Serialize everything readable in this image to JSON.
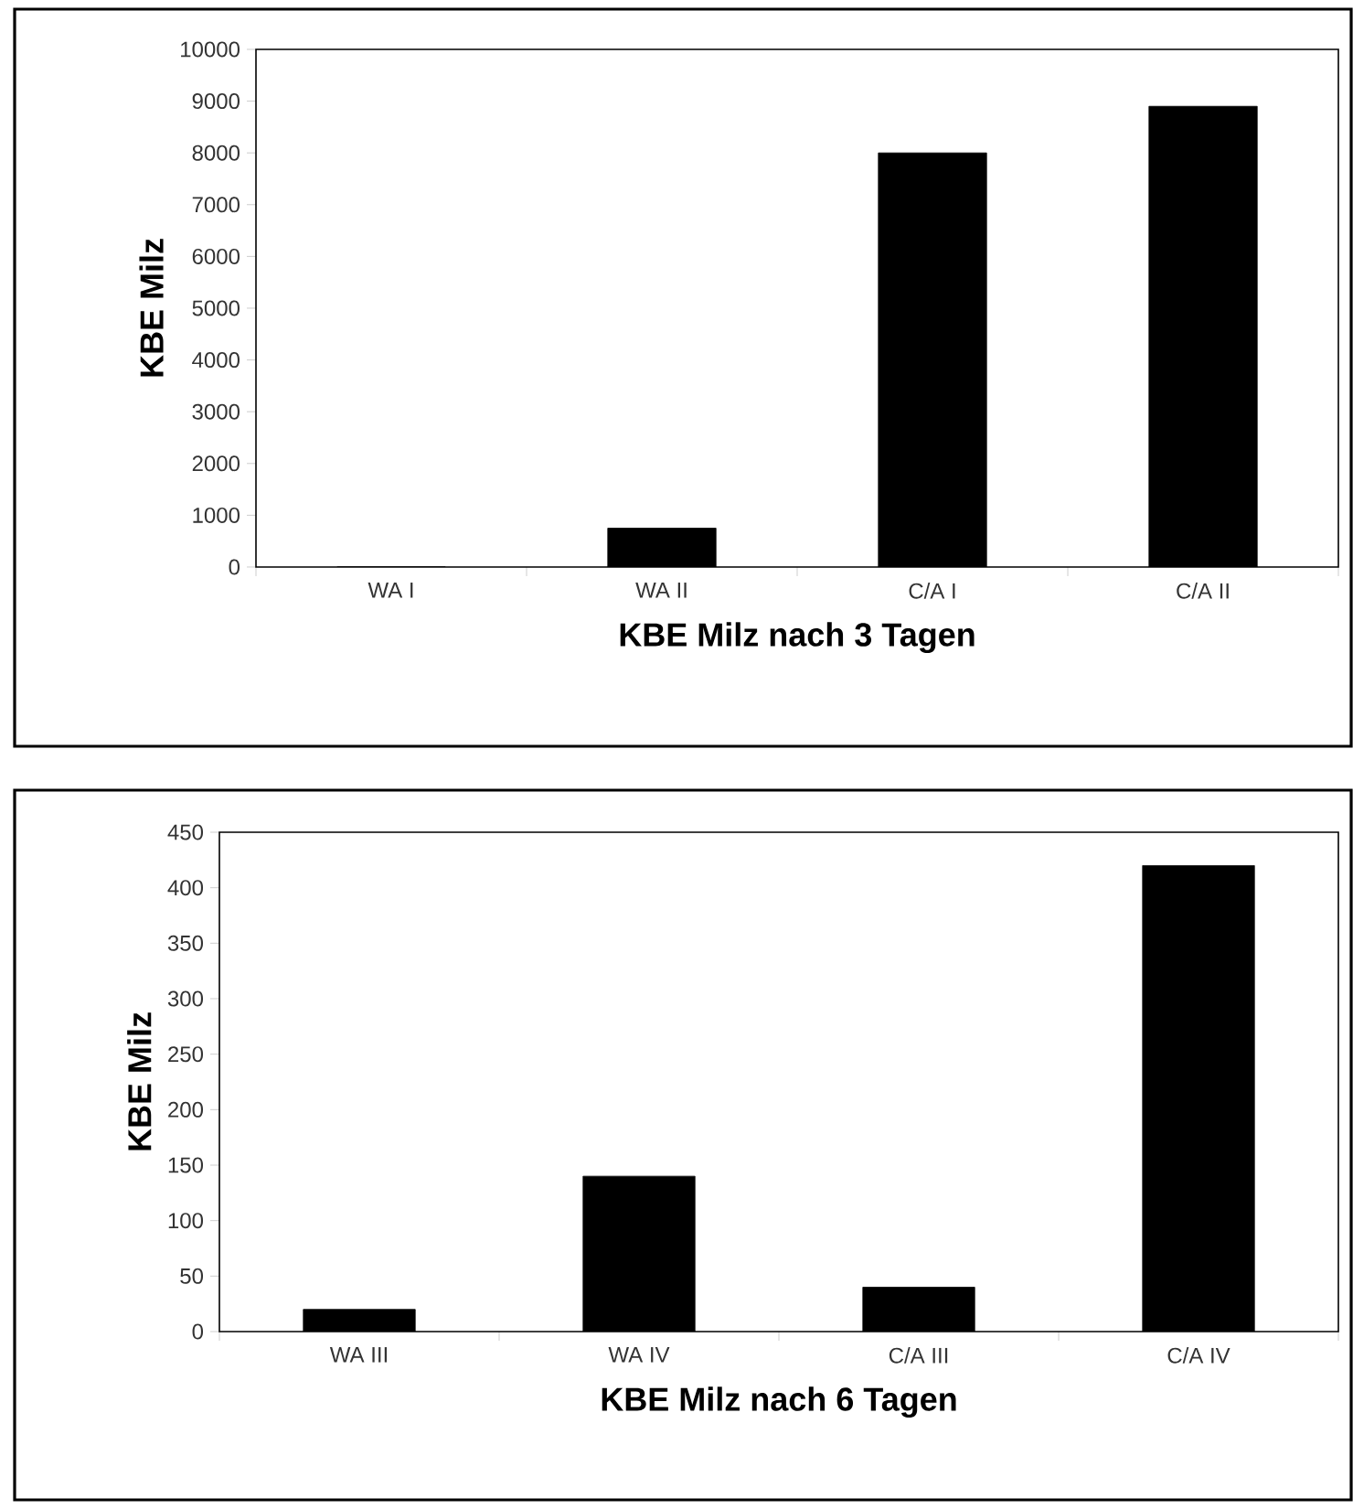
{
  "chart_data": [
    {
      "type": "bar",
      "xlabel": "KBE Milz nach 3 Tagen",
      "ylabel": "KBE Milz",
      "categories": [
        "WA I",
        "WA II",
        "C/A I",
        "C/A II"
      ],
      "values": [
        0,
        750,
        8000,
        8900
      ],
      "color": "#000000",
      "ylim": [
        0,
        10000
      ],
      "yticks": [
        0,
        1000,
        2000,
        3000,
        4000,
        5000,
        6000,
        7000,
        8000,
        9000,
        10000
      ]
    },
    {
      "type": "bar",
      "xlabel": "KBE Milz nach 6 Tagen",
      "ylabel": "KBE Milz",
      "categories": [
        "WA III",
        "WA IV",
        "C/A III",
        "C/A IV"
      ],
      "values": [
        20,
        140,
        40,
        420
      ],
      "color": "#000000",
      "ylim": [
        0,
        450
      ],
      "yticks": [
        0,
        50,
        100,
        150,
        200,
        250,
        300,
        350,
        400,
        450
      ]
    }
  ]
}
